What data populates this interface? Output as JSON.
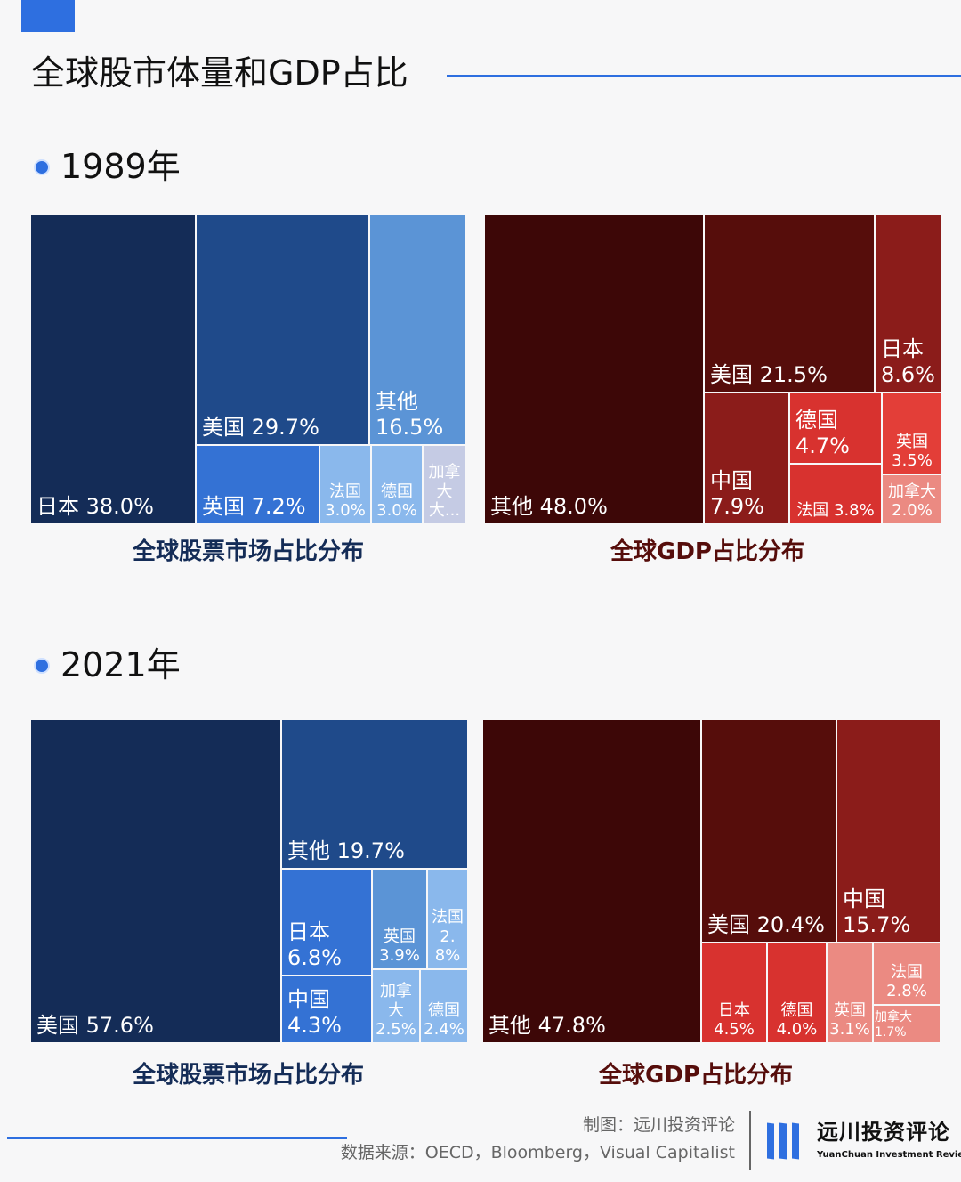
{
  "header": {
    "title": "全球股市体量和GDP占比"
  },
  "colors": {
    "accent": "#2e6fe0"
  },
  "chart_data": [
    {
      "type": "treemap",
      "year": "1989年",
      "caption": "全球股票市场占比分布",
      "items": [
        {
          "label": "日本",
          "value": "38.0%",
          "color": "#142c57"
        },
        {
          "label": "美国",
          "value": "29.7%",
          "color": "#1f4a8a"
        },
        {
          "label": "其他",
          "value": "16.5%",
          "color": "#5b94d6"
        },
        {
          "label": "英国",
          "value": "7.2%",
          "color": "#3472d4"
        },
        {
          "label": "法国",
          "value": "3.0%",
          "color": "#8ab8ec"
        },
        {
          "label": "德国",
          "value": "3.0%",
          "color": "#8ab8ec"
        },
        {
          "label": "加拿大",
          "value": "大...",
          "color": "#c5cbe4"
        }
      ]
    },
    {
      "type": "treemap",
      "year": "1989年",
      "caption": "全球GDP占比分布",
      "items": [
        {
          "label": "其他",
          "value": "48.0%",
          "color": "#3d0707"
        },
        {
          "label": "美国",
          "value": "21.5%",
          "color": "#560d0b"
        },
        {
          "label": "日本",
          "value": "8.6%",
          "color": "#8b1c1a"
        },
        {
          "label": "中国",
          "value": "7.9%",
          "color": "#8b1c1a"
        },
        {
          "label": "德国",
          "value": "4.7%",
          "color": "#d8322f"
        },
        {
          "label": "法国",
          "value": "3.8%",
          "color": "#d8322f"
        },
        {
          "label": "英国",
          "value": "3.5%",
          "color": "#e33e38"
        },
        {
          "label": "加拿大",
          "value": "2.0%",
          "color": "#eb8a82"
        }
      ]
    },
    {
      "type": "treemap",
      "year": "2021年",
      "caption": "全球股票市场占比分布",
      "items": [
        {
          "label": "美国",
          "value": "57.6%",
          "color": "#142c57"
        },
        {
          "label": "其他",
          "value": "19.7%",
          "color": "#1f4a8a"
        },
        {
          "label": "日本",
          "value": "6.8%",
          "color": "#3472d4"
        },
        {
          "label": "中国",
          "value": "4.3%",
          "color": "#3472d4"
        },
        {
          "label": "英国",
          "value": "3.9%",
          "color": "#5b94d6"
        },
        {
          "label": "法国",
          "value": "2.8%",
          "color": "#8ab8ec"
        },
        {
          "label": "加拿大",
          "value": "2.5%",
          "color": "#8ab8ec"
        },
        {
          "label": "德国",
          "value": "2.4%",
          "color": "#8ab8ec"
        }
      ]
    },
    {
      "type": "treemap",
      "year": "2021年",
      "caption": "全球GDP占比分布",
      "items": [
        {
          "label": "其他",
          "value": "47.8%",
          "color": "#3d0707"
        },
        {
          "label": "美国",
          "value": "20.4%",
          "color": "#560d0b"
        },
        {
          "label": "中国",
          "value": "15.7%",
          "color": "#8b1c1a"
        },
        {
          "label": "日本",
          "value": "4.5%",
          "color": "#d8322f"
        },
        {
          "label": "德国",
          "value": "4.0%",
          "color": "#d8322f"
        },
        {
          "label": "英国",
          "value": "3.1%",
          "color": "#eb8a82"
        },
        {
          "label": "法国",
          "value": "2.8%",
          "color": "#eb8a82"
        },
        {
          "label": "加拿大",
          "value": "1.7%",
          "color": "#eb8a82"
        }
      ]
    }
  ],
  "footer": {
    "made_by": "制图：远川投资评论",
    "source": "数据来源：OECD，Bloomberg，Visual Capitalist",
    "logo_name": "远川投资评论",
    "logo_sub": "YuanChuan Investment Review"
  }
}
